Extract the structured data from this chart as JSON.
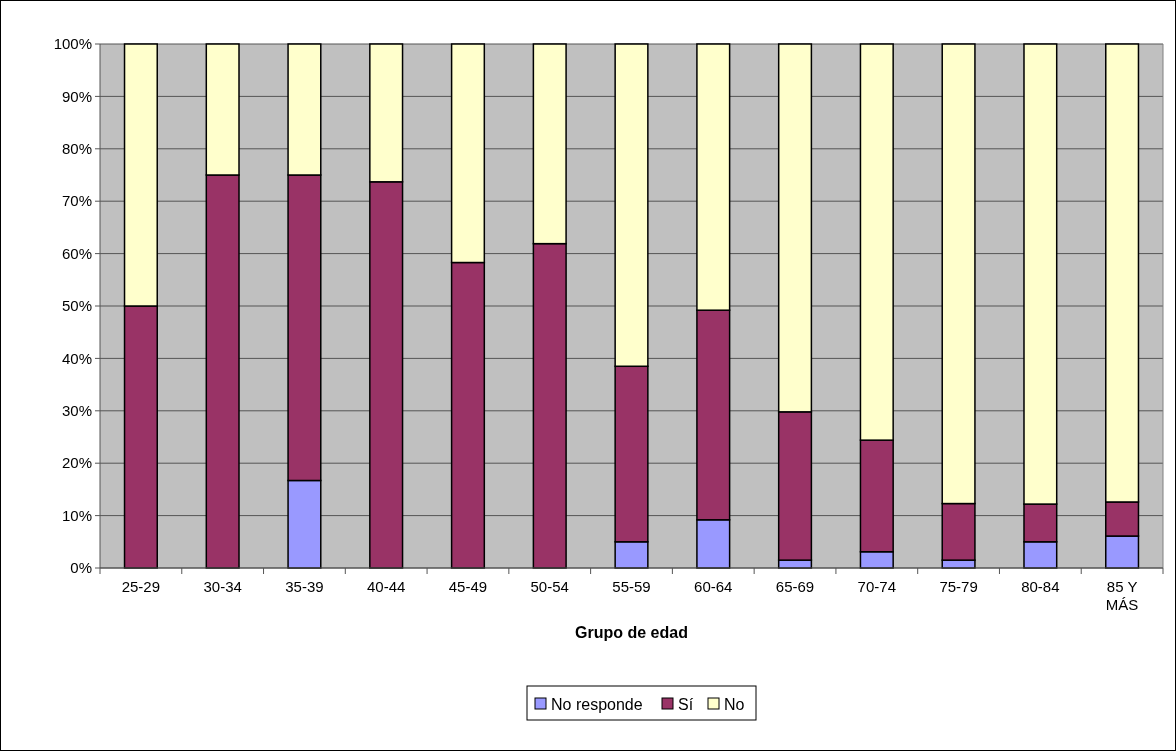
{
  "chart_data": {
    "type": "bar",
    "stacked": true,
    "xlabel": "Grupo de edad",
    "categories": [
      "25-29",
      "30-34",
      "35-39",
      "40-44",
      "45-49",
      "50-54",
      "55-59",
      "60-64",
      "65-69",
      "70-74",
      "75-79",
      "80-84",
      "85 Y MÁS"
    ],
    "series": [
      {
        "name": "No responde",
        "color": "#9999ff",
        "values": [
          0,
          0,
          16.7,
          0,
          0,
          0,
          5,
          9.2,
          1.5,
          3.1,
          1.5,
          5,
          6.1
        ]
      },
      {
        "name": "Sí",
        "color": "#993366",
        "values": [
          50,
          75,
          58.3,
          73.7,
          58.3,
          61.9,
          33.5,
          40,
          28.3,
          21.3,
          10.8,
          7.2,
          6.5
        ]
      },
      {
        "name": "No",
        "color": "#ffffcc",
        "values": [
          50,
          25,
          25,
          26.3,
          41.7,
          38.1,
          61.5,
          50.8,
          70.2,
          75.6,
          87.7,
          87.8,
          87.4
        ]
      }
    ],
    "ylim": [
      0,
      100
    ],
    "yticks": [
      {
        "value": 0,
        "label": "0%"
      },
      {
        "value": 10,
        "label": "10%"
      },
      {
        "value": 20,
        "label": "20%"
      },
      {
        "value": 30,
        "label": "30%"
      },
      {
        "value": 40,
        "label": "40%"
      },
      {
        "value": 50,
        "label": "50%"
      },
      {
        "value": 60,
        "label": "60%"
      },
      {
        "value": 70,
        "label": "70%"
      },
      {
        "value": 80,
        "label": "80%"
      },
      {
        "value": 90,
        "label": "90%"
      },
      {
        "value": 100,
        "label": "100%"
      }
    ],
    "grid": "y",
    "legend": "bottom"
  }
}
